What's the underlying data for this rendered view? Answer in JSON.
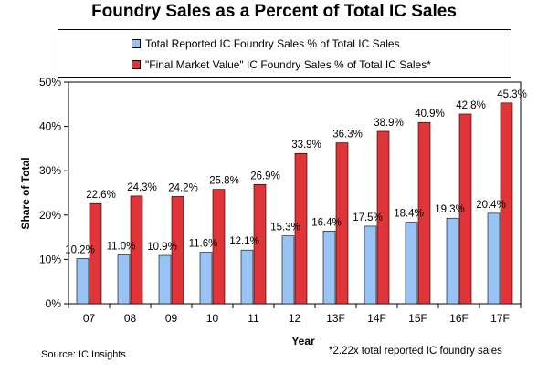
{
  "chart_data": {
    "type": "bar",
    "title": "Foundry Sales as a Percent of Total IC Sales",
    "xlabel": "Year",
    "ylabel": "Share of Total",
    "categories": [
      "07",
      "08",
      "09",
      "10",
      "11",
      "12",
      "13F",
      "14F",
      "15F",
      "16F",
      "17F"
    ],
    "series": [
      {
        "name": "Total Reported IC Foundry Sales % of Total IC Sales",
        "color": "#99C3F5",
        "values": [
          10.2,
          11.0,
          10.9,
          11.6,
          12.1,
          15.3,
          16.4,
          17.5,
          18.4,
          19.3,
          20.4
        ],
        "labels": [
          "10.2%",
          "11.0%",
          "10.9%",
          "11.6%",
          "12.1%",
          "15.3%",
          "16.4%",
          "17.5%",
          "18.4%",
          "19.3%",
          "20.4%"
        ]
      },
      {
        "name": "\"Final Market Value\" IC Foundry Sales % of Total IC Sales*",
        "color": "#E03438",
        "values": [
          22.6,
          24.3,
          24.2,
          25.8,
          26.9,
          33.9,
          36.3,
          38.9,
          40.9,
          42.8,
          45.3
        ],
        "labels": [
          "22.6%",
          "24.3%",
          "24.2%",
          "25.8%",
          "26.9%",
          "33.9%",
          "36.3%",
          "38.9%",
          "40.9%",
          "42.8%",
          "45.3%"
        ]
      }
    ],
    "ylim": [
      0,
      50
    ],
    "yticks": [
      0,
      10,
      20,
      30,
      40,
      50
    ],
    "ytick_labels": [
      "0%",
      "10%",
      "20%",
      "30%",
      "40%",
      "50%"
    ],
    "grid": false,
    "legend_position": "top"
  },
  "source": "Source: IC Insights",
  "footnote": "*2.22x total reported IC foundry sales"
}
